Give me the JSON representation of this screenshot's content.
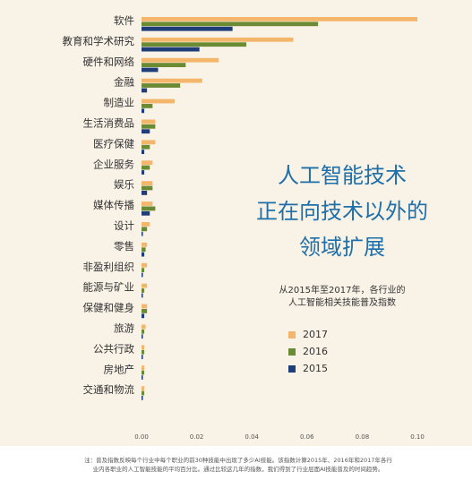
{
  "chart_data": {
    "type": "bar",
    "orientation": "horizontal",
    "categories": [
      "软件",
      "教育和学术研究",
      "硬件和网络",
      "金融",
      "制造业",
      "生活消费品",
      "医疗保健",
      "企业服务",
      "娱乐",
      "媒体传播",
      "设计",
      "零售",
      "非盈利组织",
      "能源与矿业",
      "保健和健身",
      "旅游",
      "公共行政",
      "房地产",
      "交通和物流"
    ],
    "series": [
      {
        "name": "2017",
        "color": "#f3b66b",
        "values": [
          0.1,
          0.055,
          0.028,
          0.022,
          0.012,
          0.005,
          0.005,
          0.004,
          0.004,
          0.004,
          0.003,
          0.002,
          0.002,
          0.002,
          0.002,
          0.0015,
          0.001,
          0.001,
          0.001
        ]
      },
      {
        "name": "2016",
        "color": "#6b8a34",
        "values": [
          0.064,
          0.038,
          0.016,
          0.014,
          0.004,
          0.005,
          0.003,
          0.003,
          0.004,
          0.005,
          0.002,
          0.0015,
          0.001,
          0.001,
          0.002,
          0.001,
          0.001,
          0.001,
          0.001
        ]
      },
      {
        "name": "2015",
        "color": "#1f3d78",
        "values": [
          0.033,
          0.021,
          0.006,
          0.002,
          0.001,
          0.003,
          0.001,
          0.001,
          0.002,
          0.003,
          0.0005,
          0.001,
          0.0005,
          0.0005,
          0.001,
          0.0005,
          0.0005,
          0.0005,
          0.0005
        ]
      }
    ],
    "xlim": [
      0,
      0.1
    ],
    "xticks": [
      "0.00",
      "0.02",
      "0.04",
      "0.06",
      "0.08",
      "0.10"
    ],
    "xtick_values": [
      0,
      0.02,
      0.04,
      0.06,
      0.08,
      0.1
    ],
    "legend_placement": "right",
    "grid": false
  },
  "headline": {
    "line1": "人工智能技术",
    "line2": "正在向技术以外的",
    "line3": "领域扩展"
  },
  "subtitle": {
    "line1": "从2015年至2017年，各行业的",
    "line2": "人工智能相关技能普及指数"
  },
  "note": {
    "line1": "注：普及指数反映每个行业中每个职业的前30种技能中出现了多少AI技能。该指数计算2015年、2016年和2017年各行",
    "line2": "业内各职业的人工智能技能的平均百分比。通过比较这几年的指数，我们得到了行业层面AI技能普及的时间趋势。"
  },
  "colors": {
    "background": "#f9f2e7",
    "headline": "#1f6fa8"
  }
}
